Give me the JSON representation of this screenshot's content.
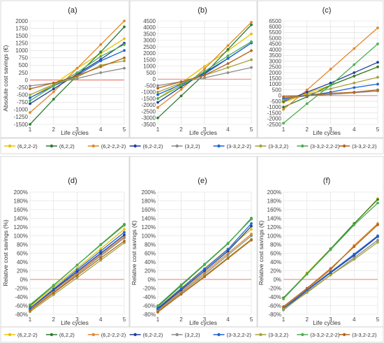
{
  "series_names": [
    "(6,2,2-2)",
    "(6,2,2)",
    "(6,2-2,2-2)",
    "(6,2-2,2)",
    "(3,2,2)",
    "(3-3,2,2-2)",
    "(3-3,2,2)",
    "(3-3,2-2,2-2)",
    "(3-3,2-2,2)"
  ],
  "series_colors": [
    "#e6c200",
    "#2e7d32",
    "#e08a2c",
    "#1f3f99",
    "#8c8c8c",
    "#1e64d6",
    "#a3a33a",
    "#4caf50",
    "#b5651d"
  ],
  "xlabel": "Life cycles",
  "legend_top": {
    "items": [
      "(6,2,2-2)",
      "(6,2,2)",
      "(6,2-2,2-2)",
      "(6,2-2,2)",
      "(3,2,2)",
      "(3-3,2,2-2)",
      "(3-3,2,2)",
      "(3-3,2-2,2-2)",
      "(3-3,2-2,2)"
    ]
  },
  "legend_bottom": {
    "items": [
      "(6,2,2-2)",
      "(6,2,2)",
      "(6,2-2,2-2)",
      "(6,2-2,2)",
      "(3,2,2)",
      "(3-3,2,2-2)",
      "(3-3,2,2)",
      "(3-3,2-2,2-2)",
      "(3-3,2-2,2)"
    ]
  },
  "chart_data": [
    {
      "panel": "(a)",
      "type": "line",
      "ylabel": "Absolute cost savings (€)",
      "ylim": [
        -1500,
        2000
      ],
      "ystep": 250,
      "ytick_labels": [
        "-1500",
        "-1250",
        "-1000",
        "-750",
        "-500",
        "-250",
        "0",
        "250",
        "500",
        "750",
        "1000",
        "1250",
        "1500",
        "1750",
        "2000"
      ],
      "x": [
        1,
        2,
        3,
        4,
        5
      ],
      "xtick_labels": [
        "1",
        "2",
        "3",
        "4",
        "5"
      ],
      "series": [
        {
          "name": "(6,2,2-2)",
          "values": [
            -600,
            -150,
            400,
            900,
            1400
          ]
        },
        {
          "name": "(6,2,2)",
          "values": [
            -1500,
            -650,
            150,
            950,
            1800
          ]
        },
        {
          "name": "(6,2-2,2-2)",
          "values": [
            -1100,
            -400,
            400,
            1200,
            2000
          ]
        },
        {
          "name": "(6,2-2,2)",
          "values": [
            -800,
            -300,
            200,
            700,
            1250
          ]
        },
        {
          "name": "(3,2,2)",
          "values": [
            -200,
            -100,
            50,
            250,
            400
          ]
        },
        {
          "name": "(3-3,2,2-2)",
          "values": [
            -600,
            -200,
            150,
            650,
            1000
          ]
        },
        {
          "name": "(3-3,2,2)",
          "values": [
            -500,
            -150,
            100,
            500,
            650
          ]
        },
        {
          "name": "(3-3,2-2,2-2)",
          "values": [
            -700,
            -200,
            250,
            800,
            1200
          ]
        },
        {
          "name": "(3-3,2-2,2)",
          "values": [
            -300,
            -100,
            150,
            450,
            750
          ]
        }
      ]
    },
    {
      "panel": "(b)",
      "type": "line",
      "ylabel": "",
      "ylim": [
        -3500,
        4500
      ],
      "ystep": 500,
      "ytick_labels": [
        "-3500",
        "-3000",
        "-2500",
        "-2000",
        "-1500",
        "-1000",
        "-500",
        "0",
        "500",
        "1000",
        "1500",
        "2000",
        "2500",
        "3000",
        "3500",
        "4000",
        "4500"
      ],
      "x": [
        1,
        2,
        3,
        4,
        5
      ],
      "xtick_labels": [
        "1",
        "2",
        "3",
        "4",
        "5"
      ],
      "series": [
        {
          "name": "(6,2,2-2)",
          "values": [
            -1500,
            -300,
            1000,
            2200,
            3500
          ]
        },
        {
          "name": "(6,2,2)",
          "values": [
            -3000,
            -1300,
            400,
            2300,
            4200
          ]
        },
        {
          "name": "(6,2-2,2-2)",
          "values": [
            -2200,
            -800,
            800,
            2600,
            4400
          ]
        },
        {
          "name": "(6,2-2,2)",
          "values": [
            -1800,
            -600,
            500,
            1600,
            2800
          ]
        },
        {
          "name": "(3,2,2)",
          "values": [
            -500,
            -200,
            100,
            500,
            900
          ]
        },
        {
          "name": "(3-3,2,2-2)",
          "values": [
            -1200,
            -400,
            400,
            1600,
            2800
          ]
        },
        {
          "name": "(3-3,2,2)",
          "values": [
            -1000,
            -300,
            300,
            900,
            1500
          ]
        },
        {
          "name": "(3-3,2-2,2-2)",
          "values": [
            -1500,
            -500,
            600,
            1800,
            2900
          ]
        },
        {
          "name": "(3-3,2-2,2)",
          "values": [
            -700,
            -200,
            300,
            1200,
            2200
          ]
        }
      ]
    },
    {
      "panel": "(c)",
      "type": "line",
      "ylabel": "",
      "ylim": [
        -2500,
        6500
      ],
      "ystep": 500,
      "ytick_labels": [
        "-2500",
        "-2000",
        "-1500",
        "-1000",
        "-500",
        "0",
        "500",
        "1000",
        "1500",
        "2000",
        "2500",
        "3000",
        "3500",
        "4000",
        "4500",
        "5000",
        "5500",
        "6000",
        "6500"
      ],
      "x": [
        1,
        2,
        3,
        4,
        5
      ],
      "xtick_labels": [
        "1",
        "2",
        "3",
        "4",
        "5"
      ],
      "series": [
        {
          "name": "(6,2,2-2)",
          "values": [
            -600,
            200,
            900,
            1700,
            2500
          ]
        },
        {
          "name": "(6,2,2)",
          "values": [
            -1000,
            -100,
            900,
            1700,
            2500
          ]
        },
        {
          "name": "(6,2-2,2-2)",
          "values": [
            -1200,
            500,
            2300,
            4100,
            5900
          ]
        },
        {
          "name": "(6,2-2,2)",
          "values": [
            -500,
            300,
            1100,
            2000,
            2900
          ]
        },
        {
          "name": "(3,2,2)",
          "values": [
            -200,
            0,
            100,
            250,
            400
          ]
        },
        {
          "name": "(3-3,2,2-2)",
          "values": [
            -300,
            0,
            300,
            700,
            1000
          ]
        },
        {
          "name": "(3-3,2,2)",
          "values": [
            -400,
            100,
            600,
            1100,
            1600
          ]
        },
        {
          "name": "(3-3,2-2,2-2)",
          "values": [
            -2400,
            -700,
            900,
            2700,
            4500
          ]
        },
        {
          "name": "(3-3,2-2,2)",
          "values": [
            -100,
            0,
            200,
            300,
            500
          ]
        }
      ]
    },
    {
      "panel": "(d)",
      "type": "line",
      "ylabel": "Relative cost savings (%)",
      "ylim": [
        -80,
        200
      ],
      "ystep": 20,
      "ytick_labels": [
        "-80%",
        "-60%",
        "-40%",
        "-20%",
        "0%",
        "20%",
        "40%",
        "60%",
        "80%",
        "100%",
        "120%",
        "140%",
        "160%",
        "180%",
        "200%"
      ],
      "x": [
        1,
        2,
        3,
        4,
        5
      ],
      "xtick_labels": [
        "1",
        "2",
        "3",
        "4",
        "5"
      ],
      "series": [
        {
          "name": "(6,2,2-2)",
          "values": [
            -62,
            -18,
            26,
            70,
            115
          ]
        },
        {
          "name": "(6,2,2)",
          "values": [
            -60,
            -14,
            33,
            80,
            126
          ]
        },
        {
          "name": "(6,2-2,2-2)",
          "values": [
            -68,
            -27,
            15,
            57,
            98
          ]
        },
        {
          "name": "(6,2-2,2)",
          "values": [
            -66,
            -24,
            18,
            60,
            102
          ]
        },
        {
          "name": "(3,2,2)",
          "values": [
            -70,
            -30,
            12,
            54,
            95
          ]
        },
        {
          "name": "(3-3,2,2-2)",
          "values": [
            -66,
            -22,
            22,
            65,
            108
          ]
        },
        {
          "name": "(3-3,2,2)",
          "values": [
            -74,
            -35,
            4,
            44,
            84
          ]
        },
        {
          "name": "(3-3,2-2,2-2)",
          "values": [
            -58,
            -13,
            33,
            79,
            124
          ]
        },
        {
          "name": "(3-3,2-2,2)",
          "values": [
            -71,
            -31,
            9,
            49,
            88
          ]
        }
      ]
    },
    {
      "panel": "(e)",
      "type": "line",
      "ylabel": "Relative cost savings (€)",
      "ylim": [
        -80,
        200
      ],
      "ystep": 20,
      "ytick_labels": [
        "-80%",
        "-60%",
        "-40%",
        "-20%",
        "0%",
        "20%",
        "40%",
        "60%",
        "80%",
        "100%",
        "120%",
        "140%",
        "160%",
        "180%",
        "200%"
      ],
      "x": [
        1,
        2,
        3,
        4,
        5
      ],
      "xtick_labels": [
        "1",
        "2",
        "3",
        "4",
        "5"
      ],
      "series": [
        {
          "name": "(6,2,2-2)",
          "values": [
            -65,
            -20,
            25,
            70,
            115
          ]
        },
        {
          "name": "(6,2,2)",
          "values": [
            -62,
            -14,
            34,
            82,
            140
          ]
        },
        {
          "name": "(6,2-2,2-2)",
          "values": [
            -70,
            -27,
            16,
            60,
            104
          ]
        },
        {
          "name": "(6,2-2,2)",
          "values": [
            -68,
            -24,
            20,
            65,
            122
          ]
        },
        {
          "name": "(3,2,2)",
          "values": [
            -72,
            -30,
            12,
            56,
            100
          ]
        },
        {
          "name": "(3-3,2,2-2)",
          "values": [
            -66,
            -21,
            24,
            69,
            128
          ]
        },
        {
          "name": "(3-3,2,2)",
          "values": [
            -74,
            -33,
            8,
            50,
            92
          ]
        },
        {
          "name": "(3-3,2-2,2-2)",
          "values": [
            -60,
            -12,
            35,
            83,
            138
          ]
        },
        {
          "name": "(3-3,2-2,2)",
          "values": [
            -75,
            -34,
            6,
            48,
            90
          ]
        }
      ]
    },
    {
      "panel": "(f)",
      "type": "line",
      "ylabel": "Relative cost savings (€)",
      "ylim": [
        -80,
        200
      ],
      "ystep": 20,
      "ytick_labels": [
        "-80%",
        "-60%",
        "-40%",
        "-20%",
        "0%",
        "20%",
        "40%",
        "60%",
        "80%",
        "100%",
        "120%",
        "140%",
        "160%",
        "180%",
        "200%"
      ],
      "x": [
        1,
        2,
        3,
        4,
        5
      ],
      "xtick_labels": [
        "1",
        "2",
        "3",
        "4",
        "5"
      ],
      "series": [
        {
          "name": "(6,2,2-2)",
          "values": [
            -45,
            15,
            70,
            128,
            185
          ]
        },
        {
          "name": "(6,2,2)",
          "values": [
            -42,
            13,
            70,
            128,
            183
          ]
        },
        {
          "name": "(6,2-2,2-2)",
          "values": [
            -65,
            -22,
            22,
            78,
            128
          ]
        },
        {
          "name": "(6,2-2,2)",
          "values": [
            -68,
            -25,
            15,
            55,
            98
          ]
        },
        {
          "name": "(3,2,2)",
          "values": [
            -70,
            -28,
            10,
            50,
            90
          ]
        },
        {
          "name": "(3-3,2,2-2)",
          "values": [
            -66,
            -24,
            17,
            58,
            100
          ]
        },
        {
          "name": "(3-3,2,2)",
          "values": [
            -68,
            -30,
            10,
            46,
            85
          ]
        },
        {
          "name": "(3-3,2-2,2-2)",
          "values": [
            -44,
            12,
            68,
            125,
            175
          ]
        },
        {
          "name": "(3-3,2-2,2)",
          "values": [
            -62,
            -20,
            25,
            75,
            125
          ]
        }
      ]
    }
  ]
}
